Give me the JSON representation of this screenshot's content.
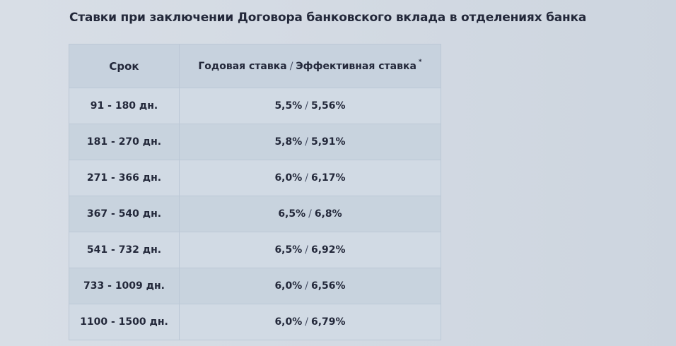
{
  "title": "Ставки при заключении Договора банковского вклада в отделениях банка",
  "table": {
    "header": {
      "term": "Срок",
      "annual_rate": "Годовая ставка",
      "separator": "/",
      "effective_rate": "Эффективная ставка",
      "footnote_mark": "*"
    },
    "rows": [
      {
        "term": "91 - 180 дн.",
        "annual": "5,5%",
        "effective": "5,56%"
      },
      {
        "term": "181 - 270 дн.",
        "annual": "5,8%",
        "effective": "5,91%"
      },
      {
        "term": "271 - 366 дн.",
        "annual": "6,0%",
        "effective": "6,17%"
      },
      {
        "term": "367 - 540 дн.",
        "annual": "6,5%",
        "effective": "6,8%"
      },
      {
        "term": "541 - 732 дн.",
        "annual": "6,5%",
        "effective": "6,92%"
      },
      {
        "term": "733 - 1009 дн.",
        "annual": "6,0%",
        "effective": "6,56%"
      },
      {
        "term": "1100 - 1500 дн.",
        "annual": "6,0%",
        "effective": "6,79%"
      }
    ]
  },
  "colors": {
    "text": "#23283a",
    "header_bg": "#c7d2de",
    "row_bg_light": "#d1dae4",
    "row_bg_dark": "#c8d3de",
    "border": "#bcc8d6"
  }
}
